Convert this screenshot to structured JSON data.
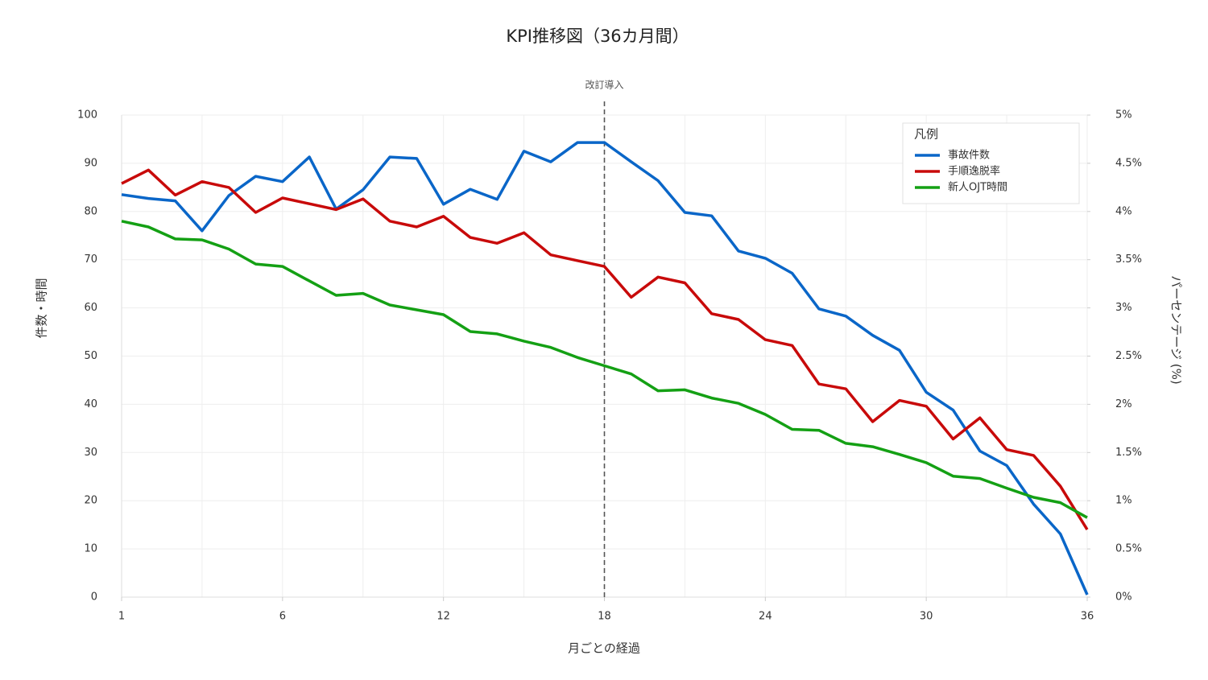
{
  "chart_data": {
    "type": "line",
    "title": "KPI推移図（36カ月間）",
    "x_label": "月ごとの経過",
    "y_label": "件数・時間",
    "y2_label": "パーセンテージ (%)",
    "categories": [
      "1",
      null,
      null,
      null,
      null,
      null,
      "6",
      null,
      null,
      null,
      null,
      null,
      "12",
      null,
      null,
      null,
      null,
      null,
      "18",
      null,
      null,
      null,
      null,
      null,
      "24",
      null,
      null,
      null,
      null,
      null,
      "30",
      null,
      null,
      null,
      null,
      null,
      "36"
    ],
    "ylim": [
      0,
      100
    ],
    "yticks": [
      0,
      10,
      20,
      30,
      40,
      50,
      60,
      70,
      80,
      90,
      100
    ],
    "y2lim": [
      0,
      5
    ],
    "y2ticks": [
      {
        "value": 0,
        "label": "0%"
      },
      {
        "value": 0.5,
        "label": "0.5%"
      },
      {
        "value": 1,
        "label": "1%"
      },
      {
        "value": 1.5,
        "label": "1.5%"
      },
      {
        "value": 2,
        "label": "2%"
      },
      {
        "value": 2.5,
        "label": "2.5%"
      },
      {
        "value": 3,
        "label": "3%"
      },
      {
        "value": 3.5,
        "label": "3.5%"
      },
      {
        "value": 4,
        "label": "4%"
      },
      {
        "value": 4.5,
        "label": "4.5%"
      },
      {
        "value": 5,
        "label": "5%"
      }
    ],
    "grid": true,
    "legend_title": "凡例",
    "legend_position": "upper right",
    "annotations": [
      {
        "text": "改訂導入",
        "x": "18"
      }
    ],
    "series": [
      {
        "name": "事故件数",
        "color": "#0a66c8",
        "values": [
          83.5,
          82.7,
          82.2,
          76,
          83.3,
          87.3,
          86.2,
          91.3,
          80.5,
          84.5,
          91.3,
          91,
          81.5,
          84.6,
          82.5,
          92.5,
          90.3,
          94.3,
          94.3,
          90.3,
          86.4,
          79.8,
          79.1,
          71.8,
          70.3,
          67.2,
          59.8,
          58.3,
          54.3,
          51.2,
          42.5,
          38.8,
          30.3,
          27.3,
          19.3,
          13.1,
          0.5
        ]
      },
      {
        "name": "手順逸脱率",
        "color": "#c80a0a",
        "axis": "y2",
        "values": [
          4.29,
          4.43,
          4.17,
          4.31,
          4.25,
          3.99,
          4.14,
          4.08,
          4.02,
          4.13,
          3.9,
          3.84,
          3.95,
          3.73,
          3.67,
          3.78,
          3.55,
          3.49,
          3.43,
          3.11,
          3.32,
          3.26,
          2.94,
          2.88,
          2.67,
          2.61,
          2.21,
          2.16,
          1.82,
          2.04,
          1.98,
          1.64,
          1.86,
          1.53,
          1.47,
          1.15,
          0.7
        ]
      },
      {
        "name": "新人OJT時間",
        "color": "#14a014",
        "values": [
          78,
          76.8,
          74.3,
          74.1,
          72.2,
          69.1,
          68.6,
          65.6,
          62.6,
          63,
          60.6,
          59.6,
          58.6,
          55.1,
          54.6,
          53.1,
          51.8,
          49.7,
          48,
          46.3,
          42.8,
          43,
          41.3,
          40.2,
          37.9,
          34.8,
          34.6,
          31.9,
          31.2,
          29.6,
          27.9,
          25.1,
          24.6,
          22.6,
          20.7,
          19.6,
          16.5
        ]
      }
    ]
  }
}
